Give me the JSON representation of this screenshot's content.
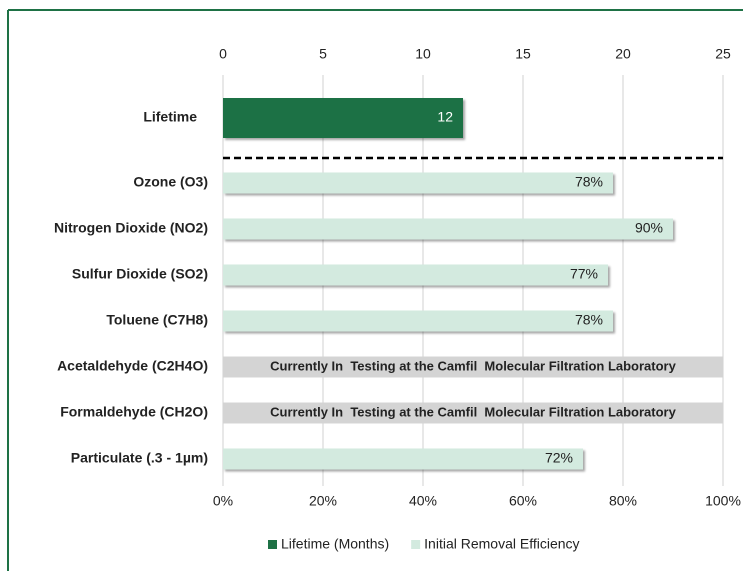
{
  "chart_data": {
    "type": "bar",
    "orientation": "horizontal",
    "categories": [
      "Lifetime",
      "Ozone (O3)",
      "Nitrogen Dioxide (NO2)",
      "Sulfur Dioxide (SO2)",
      "Toluene (C7H8)",
      "Acetaldehyde (C2H4O)",
      "Formaldehyde (CH2O)",
      "Particulate (.3 - 1µm)"
    ],
    "series": [
      {
        "name": "Lifetime (Months)",
        "color": "#1e7145",
        "axis": "x",
        "values": [
          12,
          null,
          null,
          null,
          null,
          null,
          null,
          null
        ]
      },
      {
        "name": "Initial Removal Efficiency",
        "color": "#d3eadf",
        "axis": "x2",
        "values": [
          null,
          78,
          90,
          77,
          78,
          null,
          null,
          72
        ],
        "value_labels": [
          null,
          "78%",
          "90%",
          "77%",
          "78%",
          null,
          null,
          "72%"
        ]
      }
    ],
    "annotations": [
      "Currently In  Testing at the Camfil  Molecular Filtration Laboratory",
      "Currently In  Testing at the Camfil  Molecular Filtration Laboratory"
    ],
    "xlim": [
      0,
      25
    ],
    "xticks": [
      0,
      5,
      10,
      15,
      20,
      25
    ],
    "x2lim": [
      0,
      100
    ],
    "x2ticks": [
      {
        "value": 0,
        "label": "0%"
      },
      {
        "value": 20,
        "label": "20%"
      },
      {
        "value": 40,
        "label": "40%"
      },
      {
        "value": 60,
        "label": "60%"
      },
      {
        "value": 80,
        "label": "80%"
      },
      {
        "value": 100,
        "label": "100%"
      }
    ],
    "grid": true
  }
}
